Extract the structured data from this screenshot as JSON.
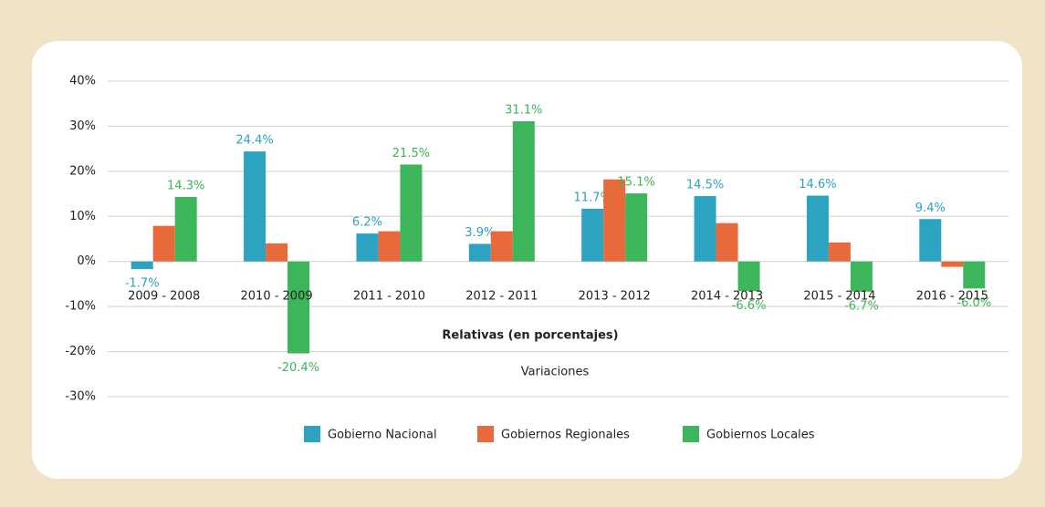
{
  "chart_data": {
    "type": "bar",
    "categories": [
      "2009 - 2008",
      "2010 - 2009",
      "2011 - 2010",
      "2012 - 2011",
      "2013 - 2012",
      "2014 - 2013",
      "2015 - 2014",
      "2016 - 2015"
    ],
    "series": [
      {
        "name": "Gobierno Nacional",
        "color": "#2ba3c1",
        "values": [
          -1.7,
          24.4,
          6.2,
          3.9,
          11.7,
          14.5,
          14.6,
          9.4
        ],
        "value_labels": [
          "-1.7%",
          "24.4%",
          "6.2%",
          "3.9%",
          "11.7%",
          "14.5%",
          "14.6%",
          "9.4%"
        ]
      },
      {
        "name": "Gobiernos Regionales",
        "color": "#e8693a",
        "values": [
          7.9,
          4.0,
          6.7,
          6.7,
          18.2,
          8.5,
          4.2,
          -1.2
        ]
      },
      {
        "name": "Gobiernos Locales",
        "color": "#3db55a",
        "values": [
          14.3,
          -20.4,
          21.5,
          31.1,
          15.1,
          -6.6,
          -6.7,
          -6.0
        ],
        "value_labels": [
          "14.3%",
          "-20.4%",
          "21.5%",
          "31.1%",
          "15.1%",
          "-6.6%",
          "-6.7%",
          "-6.0%"
        ]
      }
    ],
    "x_label": "Relativas (en porcentajes)",
    "subtitle": "Variaciones",
    "ylim": [
      -30,
      40
    ],
    "yticks": [
      {
        "value": -30,
        "label": "-30%"
      },
      {
        "value": -20,
        "label": "-20%"
      },
      {
        "value": -10,
        "label": "-10%"
      },
      {
        "value": 0,
        "label": "0%"
      },
      {
        "value": 10,
        "label": "10%"
      },
      {
        "value": 20,
        "label": "20%"
      },
      {
        "value": 30,
        "label": "30%"
      },
      {
        "value": 40,
        "label": "40%"
      }
    ],
    "grid": true,
    "legend": "bottom"
  }
}
